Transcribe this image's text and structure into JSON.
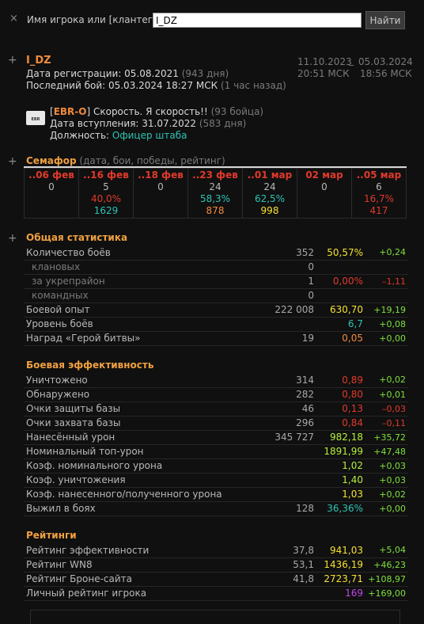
{
  "search": {
    "close": "×",
    "label": "Имя игрока или [клантег]:",
    "value": "I_DZ",
    "button": "Найти"
  },
  "player": {
    "name": "I_DZ",
    "reg_label": "Дата регистрации: 05.08.2021",
    "reg_days": "(943 дня)",
    "last_label": "Последний бой: 05.03.2024 18:27 МСК",
    "last_ago": "(1 час назад)",
    "period_date_from": "11.10.2023",
    "period_sep": "_",
    "period_date_to": "05.03.2024",
    "period_time_from": "20:51 МСК",
    "period_time_to": "18:56 МСК"
  },
  "clan": {
    "logo_text": "EBR",
    "tag_open": "[",
    "tag": "EBR-O",
    "tag_close": "]",
    "name": "Скорость. Я скорость!!",
    "members": "(93 бойца)",
    "join_label": "Дата вступления: 31.07.2022",
    "join_days": "(583 дня)",
    "role_label": "Должность:",
    "role": "Офицер штаба"
  },
  "semaphore": {
    "title": "Семафор",
    "subtitle": "(дата, бои, победы, рейтинг)",
    "columns": [
      {
        "date": "..06 фев",
        "battles": "0",
        "wins": "",
        "rating": "",
        "wins_color": "",
        "rating_color": ""
      },
      {
        "date": "..16 фев",
        "battles": "5",
        "wins": "40,0%",
        "rating": "1629",
        "wins_color": "#e03a2c",
        "rating_color": "#2fc3b4"
      },
      {
        "date": "..18 фев",
        "battles": "0",
        "wins": "",
        "rating": "",
        "wins_color": "",
        "rating_color": ""
      },
      {
        "date": "..23 фев",
        "battles": "24",
        "wins": "58,3%",
        "rating": "878",
        "wins_color": "#2fc3b4",
        "rating_color": "#f08a3c"
      },
      {
        "date": "..01 мар",
        "battles": "24",
        "wins": "62,5%",
        "rating": "998",
        "wins_color": "#2fc3b4",
        "rating_color": "#f5e130"
      },
      {
        "date": "02 мар",
        "battles": "0",
        "wins": "",
        "rating": "",
        "wins_color": "",
        "rating_color": ""
      },
      {
        "date": "..05 мар",
        "battles": "6",
        "wins": "16,7%",
        "rating": "417",
        "wins_color": "#e03a2c",
        "rating_color": "#e03a2c"
      }
    ]
  },
  "general": {
    "title": "Общая статистика",
    "rows": [
      {
        "name": "Количество боёв",
        "sub": false,
        "value": "352",
        "pct": "50,57%",
        "pct_color": "#f5e130",
        "delta": "+0,24",
        "delta_color": "#7ee03c"
      },
      {
        "name": "клановых",
        "sub": true,
        "value": "0",
        "pct": "",
        "pct_color": "",
        "delta": "",
        "delta_color": ""
      },
      {
        "name": "за укрепрайон",
        "sub": true,
        "value": "1",
        "pct": "0,00%",
        "pct_color": "#e03a2c",
        "delta": "–1,11",
        "delta_color": "#e03a2c"
      },
      {
        "name": "командных",
        "sub": true,
        "value": "0",
        "pct": "",
        "pct_color": "",
        "delta": "",
        "delta_color": ""
      },
      {
        "name": "Боевой опыт",
        "sub": false,
        "value": "222 008",
        "pct": "630,70",
        "pct_color": "#f5e130",
        "delta": "+19,19",
        "delta_color": "#7ee03c"
      },
      {
        "name": "Уровень боёв",
        "sub": false,
        "value": "",
        "pct": "6,7",
        "pct_color": "#2fc3b4",
        "delta": "+0,08",
        "delta_color": "#7ee03c"
      },
      {
        "name": "Наград «Герой битвы»",
        "sub": false,
        "value": "19",
        "pct": "0,05",
        "pct_color": "#f08a3c",
        "delta": "+0,00",
        "delta_color": "#7ee03c"
      }
    ]
  },
  "efficiency": {
    "title": "Боевая эффективность",
    "rows": [
      {
        "name": "Уничтожено",
        "value": "314",
        "pct": "0,89",
        "pct_color": "#e03a2c",
        "delta": "+0,02",
        "delta_color": "#7ee03c"
      },
      {
        "name": "Обнаружено",
        "value": "282",
        "pct": "0,80",
        "pct_color": "#e03a2c",
        "delta": "+0,01",
        "delta_color": "#7ee03c"
      },
      {
        "name": "Очки защиты базы",
        "value": "46",
        "pct": "0,13",
        "pct_color": "#e03a2c",
        "delta": "–0,03",
        "delta_color": "#e03a2c"
      },
      {
        "name": "Очки захвата базы",
        "value": "296",
        "pct": "0,84",
        "pct_color": "#e03a2c",
        "delta": "–0,11",
        "delta_color": "#e03a2c"
      },
      {
        "name": "Нанесённый урон",
        "value": "345 727",
        "pct": "982,18",
        "pct_color": "#b8f03c",
        "delta": "+35,72",
        "delta_color": "#7ee03c"
      },
      {
        "name": "Номинальный топ-урон",
        "value": "",
        "pct": "1891,99",
        "pct_color": "#b8f03c",
        "delta": "+47,48",
        "delta_color": "#7ee03c"
      },
      {
        "name": "Коэф. номинального урона",
        "value": "",
        "pct": "1,02",
        "pct_color": "#b8f03c",
        "delta": "+0,03",
        "delta_color": "#7ee03c"
      },
      {
        "name": "Коэф. уничтожения",
        "value": "",
        "pct": "1,40",
        "pct_color": "#b8f03c",
        "delta": "+0,03",
        "delta_color": "#7ee03c"
      },
      {
        "name": "Коэф. нанесенного/полученного урона",
        "value": "",
        "pct": "1,03",
        "pct_color": "#f5e130",
        "delta": "+0,02",
        "delta_color": "#7ee03c"
      },
      {
        "name": "Выжил в боях",
        "value": "128",
        "pct": "36,36%",
        "pct_color": "#2fc3b4",
        "delta": "+0,00",
        "delta_color": "#7ee03c"
      }
    ]
  },
  "ratings": {
    "title": "Рейтинги",
    "rows": [
      {
        "name": "Рейтинг эффективности",
        "value": "37,8",
        "pct": "941,03",
        "pct_color": "#f5e130",
        "delta": "+5,04",
        "delta_color": "#7ee03c"
      },
      {
        "name": "Рейтинг WN8",
        "value": "53,1",
        "pct": "1436,19",
        "pct_color": "#f5e130",
        "delta": "+46,23",
        "delta_color": "#7ee03c"
      },
      {
        "name": "Рейтинг Броне-сайта",
        "value": "41,8",
        "pct": "2723,71",
        "pct_color": "#f5e130",
        "delta": "+108,97",
        "delta_color": "#7ee03c"
      },
      {
        "name": "Личный рейтинг игрока",
        "value": "",
        "pct": "169",
        "pct_color": "#c247e8",
        "delta": "+169,00",
        "delta_color": "#7ee03c"
      }
    ]
  },
  "plus_sign": "+",
  "colors": {
    "accent_orange": "#f08a3c",
    "section_title": "#f0a040",
    "negative": "#e03a2c",
    "positive": "#7ee03c",
    "teal": "#2fc3b4",
    "yellow": "#f5e130",
    "purple": "#c247e8"
  }
}
